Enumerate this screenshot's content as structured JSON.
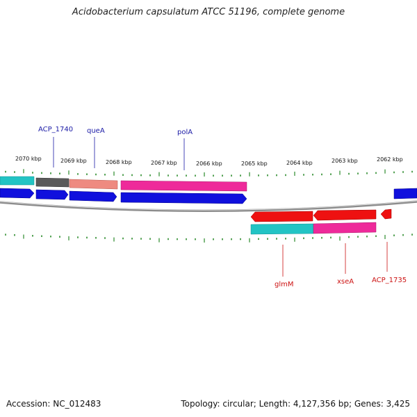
{
  "title": "Acidobacterium capsulatum ATCC 51196, complete genome",
  "footer": {
    "accession": "Accession: NC_012483",
    "summary": "Topology: circular; Length: 4,127,356 bp; Genes: 3,425"
  },
  "colors": {
    "backbone": "#8c8c8c",
    "tick": "#2a8a2a",
    "cds_forward": "#1010dd",
    "cds_reverse": "#ee1111",
    "label_forward": "#1a1aa6",
    "label_reverse": "#cc1111",
    "cog_pink": "#ee2a9a",
    "cog_salmon": "#ee8a80",
    "cog_cyan": "#22c4c4",
    "cog_gray": "#5a5a5a"
  },
  "axis": {
    "unit": "kbp",
    "scale_labels": [
      "2070 kbp",
      "2069 kbp",
      "2068 kbp",
      "2067 kbp",
      "2066 kbp",
      "2065 kbp",
      "2064 kbp",
      "2063 kbp",
      "2062 kbp"
    ]
  },
  "genes_forward": [
    {
      "name": "ACP_1740"
    },
    {
      "name": "queA"
    },
    {
      "name": "polA"
    }
  ],
  "genes_reverse": [
    {
      "name": "glmM"
    },
    {
      "name": "xseA"
    },
    {
      "name": "ACP_1735"
    }
  ]
}
